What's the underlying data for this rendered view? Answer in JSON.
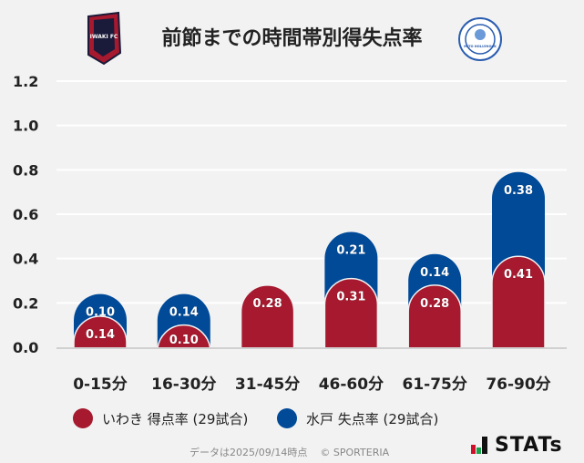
{
  "title": "前節までの時間帯別得失点率",
  "home_logo_text": "IWAKI FC",
  "away_logo_text": "MITO HOLLYHOCK",
  "legend": [
    {
      "label": "いわき 得点率 (29試合)",
      "color": "#a6192e"
    },
    {
      "label": "水戸 失点率 (29試合)",
      "color": "#004a98"
    }
  ],
  "footer": {
    "date": "データは2025/09/14時点",
    "copyright": "© SPORTERIA",
    "brand": "STATs"
  },
  "chart_data": {
    "type": "bar",
    "stacked": true,
    "categories": [
      "0-15分",
      "16-30分",
      "31-45分",
      "46-60分",
      "61-75分",
      "76-90分"
    ],
    "series": [
      {
        "name": "いわき 得点率 (29試合)",
        "color": "#a6192e",
        "values": [
          0.14,
          0.1,
          0.28,
          0.31,
          0.28,
          0.41
        ]
      },
      {
        "name": "水戸 失点率 (29試合)",
        "color": "#004a98",
        "values": [
          0.1,
          0.14,
          null,
          0.21,
          0.14,
          0.38
        ]
      }
    ],
    "ylim": [
      0,
      1.2
    ],
    "yticks": [
      "0.0",
      "0.2",
      "0.4",
      "0.6",
      "0.8",
      "1.0",
      "1.2"
    ],
    "grid": true,
    "legend_position": "bottom"
  }
}
